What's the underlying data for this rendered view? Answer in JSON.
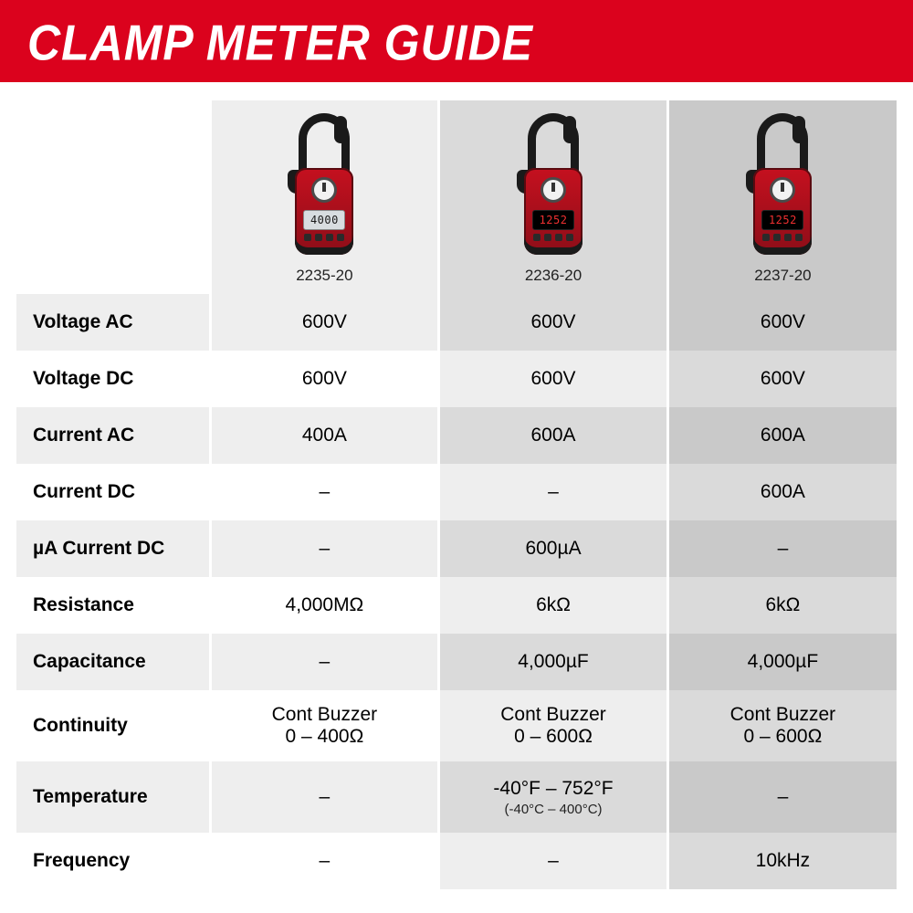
{
  "title": "CLAMP METER GUIDE",
  "colors": {
    "brand_red": "#db021d",
    "header_text": "#ffffff",
    "col1_bg": "#eeeeee",
    "col2_bg": "#dadada",
    "col3_bg": "#c9c9c9"
  },
  "products": [
    {
      "model": "2235-20",
      "screen_style": "light",
      "screen_text": "4000"
    },
    {
      "model": "2236-20",
      "screen_style": "dark",
      "screen_text": "1252"
    },
    {
      "model": "2237-20",
      "screen_style": "dark",
      "screen_text": "1252"
    }
  ],
  "rows": [
    {
      "label": "Voltage AC",
      "values": [
        "600V",
        "600V",
        "600V"
      ]
    },
    {
      "label": "Voltage DC",
      "values": [
        "600V",
        "600V",
        "600V"
      ]
    },
    {
      "label": "Current AC",
      "values": [
        "400A",
        "600A",
        "600A"
      ]
    },
    {
      "label": "Current DC",
      "values": [
        "–",
        "–",
        "600A"
      ]
    },
    {
      "label": "µA Current DC",
      "values": [
        "–",
        "600µA",
        "–"
      ]
    },
    {
      "label": "Resistance",
      "values": [
        "4,000MΩ",
        "6kΩ",
        "6kΩ"
      ]
    },
    {
      "label": "Capacitance",
      "values": [
        "–",
        "4,000µF",
        "4,000µF"
      ]
    },
    {
      "label": "Continuity",
      "tall": true,
      "values": [
        "Cont Buzzer\n0 – 400Ω",
        "Cont Buzzer\n0 – 600Ω",
        "Cont Buzzer\n0 – 600Ω"
      ]
    },
    {
      "label": "Temperature",
      "tall": true,
      "values": [
        "–",
        "-40°F – 752°F",
        "–"
      ],
      "sub": [
        "",
        "(-40°C – 400°C)",
        ""
      ]
    },
    {
      "label": "Frequency",
      "values": [
        "–",
        "–",
        "10kHz"
      ]
    }
  ]
}
